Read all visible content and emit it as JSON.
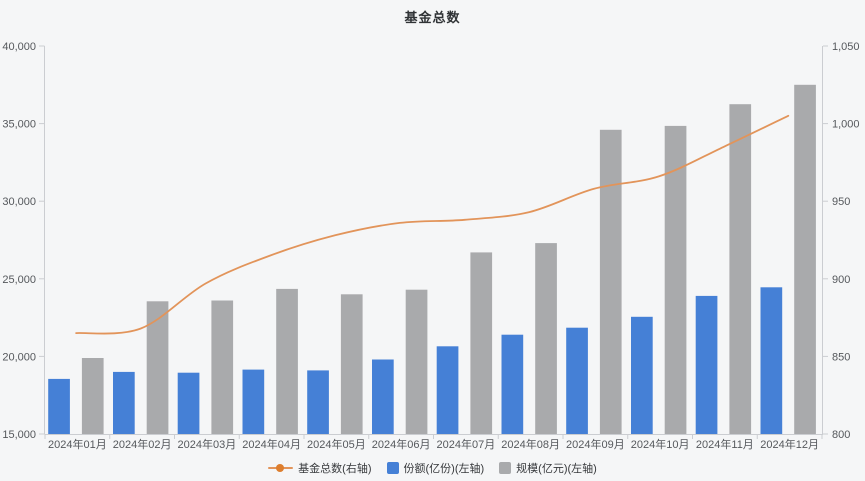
{
  "page": {
    "background": "#F5F6F7"
  },
  "chart_data": {
    "type": "bar",
    "combo": "bar+line-dual-axis",
    "title": "基金总数",
    "categories": [
      "2024年01月",
      "2024年02月",
      "2024年03月",
      "2024年04月",
      "2024年05月",
      "2024年06月",
      "2024年07月",
      "2024年08月",
      "2024年09月",
      "2024年10月",
      "2024年11月",
      "2024年12月"
    ],
    "series": [
      {
        "key": "fund-total",
        "name": "基金总数(右轴)",
        "type": "line",
        "axis": "right",
        "color": "#E2945A",
        "marker_color": "#DD7E2E",
        "values": [
          865,
          868,
          897,
          915,
          928,
          936,
          938,
          943,
          958,
          966,
          985,
          1005
        ]
      },
      {
        "key": "shares",
        "name": "份额(亿份)(左轴)",
        "type": "bar",
        "axis": "left",
        "color": "#4580D6",
        "values": [
          18550,
          19000,
          18950,
          19150,
          19100,
          19800,
          20650,
          21400,
          21850,
          22550,
          23900,
          24450
        ]
      },
      {
        "key": "scale",
        "name": "规模(亿元)(左轴)",
        "type": "bar",
        "axis": "left",
        "color": "#A9AAAC",
        "values": [
          19900,
          23550,
          23600,
          24350,
          24000,
          24300,
          26700,
          27300,
          34600,
          34850,
          36250,
          37500
        ]
      }
    ],
    "left_axis": {
      "min": 15000,
      "max": 40000,
      "tick_values": [
        15000,
        20000,
        25000,
        30000,
        35000,
        40000
      ],
      "tick_labels": [
        "15,000",
        "20,000",
        "25,000",
        "30,000",
        "35,000",
        "40,000"
      ]
    },
    "right_axis": {
      "min": 800,
      "max": 1050,
      "tick_values": [
        800,
        850,
        900,
        950,
        1000,
        1050
      ],
      "tick_labels": [
        "800",
        "850",
        "900",
        "950",
        "1,000",
        "1,050"
      ]
    },
    "legend_position": "bottom",
    "grid": false,
    "axis_color": "#CBCDD1",
    "label_color": "#55585C",
    "title_color": "#303336"
  }
}
